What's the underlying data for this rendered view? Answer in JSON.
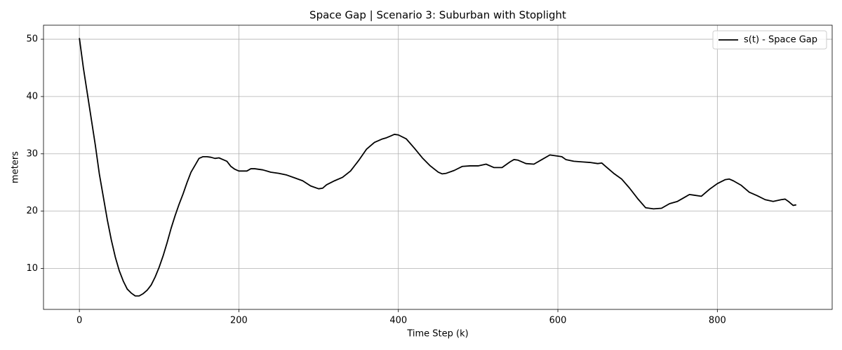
{
  "chart_data": {
    "type": "line",
    "title": "Space Gap | Scenario 3: Suburban with Stoplight",
    "x_label": "Time Step (k)",
    "y_label": "meters",
    "x": [
      0,
      5,
      10,
      15,
      20,
      25,
      30,
      35,
      40,
      45,
      50,
      55,
      60,
      65,
      70,
      75,
      80,
      85,
      90,
      95,
      100,
      105,
      110,
      115,
      120,
      125,
      130,
      135,
      140,
      145,
      150,
      155,
      160,
      165,
      170,
      175,
      180,
      185,
      190,
      195,
      200,
      210,
      215,
      220,
      230,
      240,
      250,
      260,
      270,
      280,
      290,
      300,
      305,
      310,
      320,
      330,
      340,
      350,
      360,
      370,
      380,
      385,
      390,
      395,
      400,
      410,
      420,
      430,
      440,
      450,
      455,
      460,
      470,
      480,
      490,
      500,
      510,
      520,
      530,
      540,
      545,
      550,
      560,
      570,
      580,
      590,
      600,
      605,
      610,
      620,
      630,
      640,
      650,
      655,
      660,
      670,
      680,
      690,
      700,
      710,
      720,
      730,
      740,
      750,
      760,
      765,
      770,
      780,
      790,
      800,
      810,
      815,
      820,
      830,
      840,
      850,
      860,
      870,
      880,
      885,
      890,
      895,
      899
    ],
    "series": [
      {
        "name": "s(t) - Space Gap",
        "color": "#000000",
        "values": [
          50.2,
          45,
          40.5,
          36,
          31.5,
          26.5,
          22.5,
          18.5,
          15,
          12,
          9.6,
          7.8,
          6.4,
          5.7,
          5.2,
          5.2,
          5.6,
          6.2,
          7.1,
          8.5,
          10.2,
          12.2,
          14.5,
          17,
          19.2,
          21.2,
          23,
          25,
          26.8,
          28,
          29.2,
          29.5,
          29.5,
          29.4,
          29.2,
          29.3,
          29,
          28.7,
          27.8,
          27.3,
          27,
          27,
          27.4,
          27.4,
          27.2,
          26.8,
          26.6,
          26.3,
          25.8,
          25.3,
          24.4,
          23.9,
          24,
          24.6,
          25.3,
          25.9,
          27,
          28.8,
          30.8,
          32,
          32.6,
          32.8,
          33.1,
          33.4,
          33.3,
          32.6,
          31,
          29.3,
          27.9,
          26.8,
          26.5,
          26.6,
          27.1,
          27.8,
          27.9,
          27.9,
          28.2,
          27.6,
          27.6,
          28.6,
          29,
          28.9,
          28.3,
          28.2,
          29,
          29.8,
          29.6,
          29.5,
          29,
          28.7,
          28.6,
          28.5,
          28.3,
          28.4,
          27.8,
          26.6,
          25.6,
          24,
          22.2,
          20.6,
          20.4,
          20.5,
          21.3,
          21.7,
          22.5,
          22.9,
          22.8,
          22.6,
          23.8,
          24.8,
          25.5,
          25.6,
          25.3,
          24.5,
          23.3,
          22.7,
          22,
          21.7,
          22,
          22.1,
          21.6,
          21,
          21.1
        ]
      }
    ],
    "xlim": [
      -45,
      944
    ],
    "ylim": [
      2.85,
      52.45
    ],
    "xticks": [
      0,
      200,
      400,
      600,
      800
    ],
    "yticks": [
      10,
      20,
      30,
      40,
      50
    ],
    "grid": true,
    "legend": "upper right"
  }
}
